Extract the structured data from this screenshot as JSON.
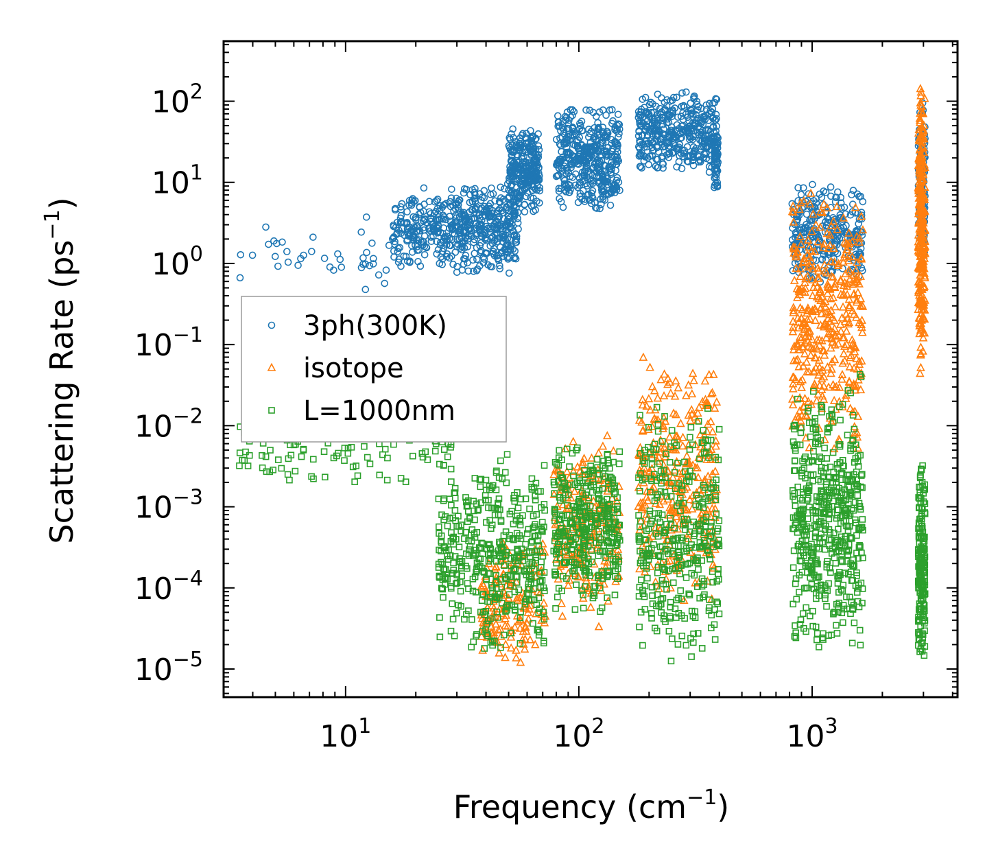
{
  "chart_data": {
    "type": "scatter",
    "title": "",
    "xlabel": "Frequency (cm",
    "xlabel_sup": "−1",
    "xlabel_close": ")",
    "ylabel": "Scattering Rate (ps",
    "ylabel_sup": "−1",
    "ylabel_close": ")",
    "xscale": "log",
    "yscale": "log",
    "xlim": [
      3,
      4200
    ],
    "ylim": [
      4.5e-06,
      550
    ],
    "x_ticks": [
      {
        "value": 10,
        "base": "10",
        "exp": "1"
      },
      {
        "value": 100,
        "base": "10",
        "exp": "2"
      },
      {
        "value": 1000,
        "base": "10",
        "exp": "3"
      }
    ],
    "y_ticks": [
      {
        "value": 100,
        "base": "10",
        "exp": "2"
      },
      {
        "value": 10,
        "base": "10",
        "exp": "1"
      },
      {
        "value": 1,
        "base": "10",
        "exp": "0"
      },
      {
        "value": 0.1,
        "base": "10",
        "exp": "−1"
      },
      {
        "value": 0.01,
        "base": "10",
        "exp": "−2"
      },
      {
        "value": 0.001,
        "base": "10",
        "exp": "−3"
      },
      {
        "value": 0.0001,
        "base": "10",
        "exp": "−4"
      },
      {
        "value": 1e-05,
        "base": "10",
        "exp": "−5"
      }
    ],
    "legend": "center-left",
    "grid": false,
    "series": [
      {
        "name": "3ph(300K)",
        "marker": "circle",
        "color": "#1f77b4",
        "clusters": [
          {
            "xmin": 3.5,
            "xmax": 16,
            "ymin": 0.3,
            "ymax": 5,
            "n": 40
          },
          {
            "xmin": 16,
            "xmax": 30,
            "ymin": 0.8,
            "ymax": 9,
            "n": 220
          },
          {
            "xmin": 30,
            "xmax": 55,
            "ymin": 0.7,
            "ymax": 11,
            "n": 320
          },
          {
            "xmin": 50,
            "xmax": 68,
            "ymin": 4,
            "ymax": 48,
            "n": 280
          },
          {
            "xmin": 80,
            "xmax": 150,
            "ymin": 4,
            "ymax": 95,
            "n": 420
          },
          {
            "xmin": 180,
            "xmax": 390,
            "ymin": 12,
            "ymax": 145,
            "n": 380
          },
          {
            "xmin": 380,
            "xmax": 395,
            "ymin": 7,
            "ymax": 52,
            "n": 60
          },
          {
            "xmin": 820,
            "xmax": 1650,
            "ymin": 0.5,
            "ymax": 10,
            "n": 300
          },
          {
            "xmin": 2850,
            "xmax": 3050,
            "ymin": 1,
            "ymax": 110,
            "n": 120
          }
        ]
      },
      {
        "name": "isotope",
        "marker": "triangle",
        "color": "#ff7f0e",
        "clusters": [
          {
            "xmin": 38,
            "xmax": 72,
            "ymin": 1e-05,
            "ymax": 0.0005,
            "n": 160
          },
          {
            "xmin": 78,
            "xmax": 150,
            "ymin": 3e-05,
            "ymax": 0.0085,
            "n": 220
          },
          {
            "xmin": 180,
            "xmax": 390,
            "ymin": 6e-05,
            "ymax": 0.075,
            "n": 320
          },
          {
            "xmin": 820,
            "xmax": 1650,
            "ymin": 0.0032,
            "ymax": 10,
            "n": 420
          },
          {
            "xmin": 2850,
            "xmax": 3050,
            "ymin": 0.028,
            "ymax": 240,
            "n": 280
          }
        ]
      },
      {
        "name": "L=1000nm",
        "marker": "square",
        "color": "#2ca02c",
        "clusters": [
          {
            "xmin": 3.5,
            "xmax": 30,
            "ymin": 0.0015,
            "ymax": 0.018,
            "n": 120
          },
          {
            "xmin": 25,
            "xmax": 72,
            "ymin": 1.5e-05,
            "ymax": 0.005,
            "n": 440
          },
          {
            "xmin": 78,
            "xmax": 150,
            "ymin": 4.5e-05,
            "ymax": 0.007,
            "n": 360
          },
          {
            "xmin": 180,
            "xmax": 400,
            "ymin": 1e-05,
            "ymax": 0.02,
            "n": 360
          },
          {
            "xmin": 820,
            "xmax": 1650,
            "ymin": 1.2e-05,
            "ymax": 0.045,
            "n": 520
          },
          {
            "xmin": 2850,
            "xmax": 3050,
            "ymin": 1e-05,
            "ymax": 0.004,
            "n": 200
          }
        ]
      }
    ]
  }
}
